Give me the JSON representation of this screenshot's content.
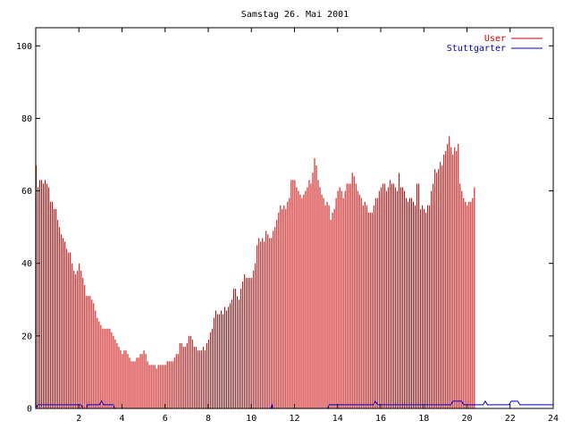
{
  "chart_data": {
    "type": "bar",
    "title": "Samstag 26. Mai 2001",
    "xlabel": "",
    "ylabel": "",
    "xlim": [
      0,
      24
    ],
    "ylim": [
      0,
      105
    ],
    "x_ticks": [
      2,
      4,
      6,
      8,
      10,
      12,
      14,
      16,
      18,
      20,
      22,
      24
    ],
    "y_ticks": [
      0,
      20,
      40,
      60,
      80,
      100
    ],
    "grid": false,
    "legend_position": "top-right",
    "series": [
      {
        "name": "User",
        "color": "#cc0000",
        "style": "impulses",
        "sample_interval_hours": 0.0833,
        "values": [
          67,
          61,
          63,
          63,
          62,
          63,
          62,
          61,
          57,
          57,
          55,
          55,
          52,
          50,
          48,
          47,
          46,
          44,
          43,
          43,
          40,
          38,
          37,
          38,
          40,
          38,
          36,
          34,
          31,
          31,
          31,
          30,
          29,
          27,
          25,
          24,
          23,
          22,
          22,
          22,
          22,
          22,
          21,
          20,
          19,
          18,
          17,
          16,
          15,
          16,
          16,
          15,
          14,
          13,
          13,
          13,
          14,
          14,
          15,
          15,
          16,
          15,
          13,
          12,
          12,
          12,
          12,
          11,
          12,
          12,
          12,
          12,
          12,
          13,
          13,
          13,
          13,
          14,
          15,
          15,
          18,
          18,
          17,
          17,
          18,
          20,
          20,
          19,
          17,
          17,
          16,
          16,
          16,
          17,
          16,
          18,
          19,
          21,
          22,
          25,
          27,
          26,
          26,
          27,
          26,
          28,
          27,
          28,
          29,
          30,
          33,
          33,
          31,
          30,
          33,
          35,
          37,
          36,
          36,
          36,
          36,
          38,
          40,
          45,
          47,
          46,
          47,
          46,
          49,
          48,
          47,
          47,
          49,
          50,
          52,
          54,
          56,
          55,
          56,
          55,
          57,
          58,
          63,
          63,
          63,
          61,
          60,
          59,
          58,
          59,
          60,
          61,
          63,
          62,
          65,
          69,
          67,
          63,
          61,
          59,
          58,
          56,
          57,
          56,
          52,
          54,
          55,
          58,
          60,
          61,
          60,
          58,
          60,
          62,
          62,
          62,
          65,
          64,
          62,
          60,
          59,
          58,
          56,
          57,
          56,
          54,
          54,
          54,
          56,
          58,
          58,
          60,
          61,
          62,
          62,
          60,
          61,
          63,
          62,
          62,
          61,
          60,
          65,
          61,
          61,
          60,
          58,
          57,
          58,
          58,
          57,
          56,
          62,
          62,
          55,
          56,
          55,
          54,
          56,
          56,
          60,
          62,
          66,
          65,
          66,
          68,
          67,
          70,
          71,
          73,
          75,
          72,
          70,
          72,
          71,
          73,
          62,
          60,
          58,
          57,
          56,
          57,
          57,
          58,
          61
        ]
      },
      {
        "name": "Stuttgarter",
        "color": "#0000cc",
        "style": "lines",
        "points": [
          [
            0.0,
            0
          ],
          [
            0.1,
            1
          ],
          [
            2.1,
            1
          ],
          [
            2.2,
            0
          ],
          [
            2.35,
            0
          ],
          [
            2.4,
            1
          ],
          [
            2.95,
            1
          ],
          [
            3.05,
            2
          ],
          [
            3.15,
            1
          ],
          [
            3.6,
            1
          ],
          [
            3.65,
            0
          ],
          [
            10.9,
            0
          ],
          [
            10.95,
            1
          ],
          [
            11.0,
            0
          ],
          [
            13.55,
            0
          ],
          [
            13.6,
            1
          ],
          [
            15.65,
            1
          ],
          [
            15.75,
            2
          ],
          [
            15.85,
            1
          ],
          [
            19.25,
            1
          ],
          [
            19.35,
            2
          ],
          [
            19.75,
            2
          ],
          [
            19.85,
            1
          ],
          [
            20.75,
            1
          ],
          [
            20.85,
            2
          ],
          [
            20.95,
            1
          ],
          [
            21.95,
            1
          ],
          [
            22.05,
            2
          ],
          [
            22.35,
            2
          ],
          [
            22.45,
            1
          ],
          [
            24.0,
            1
          ]
        ]
      }
    ]
  }
}
